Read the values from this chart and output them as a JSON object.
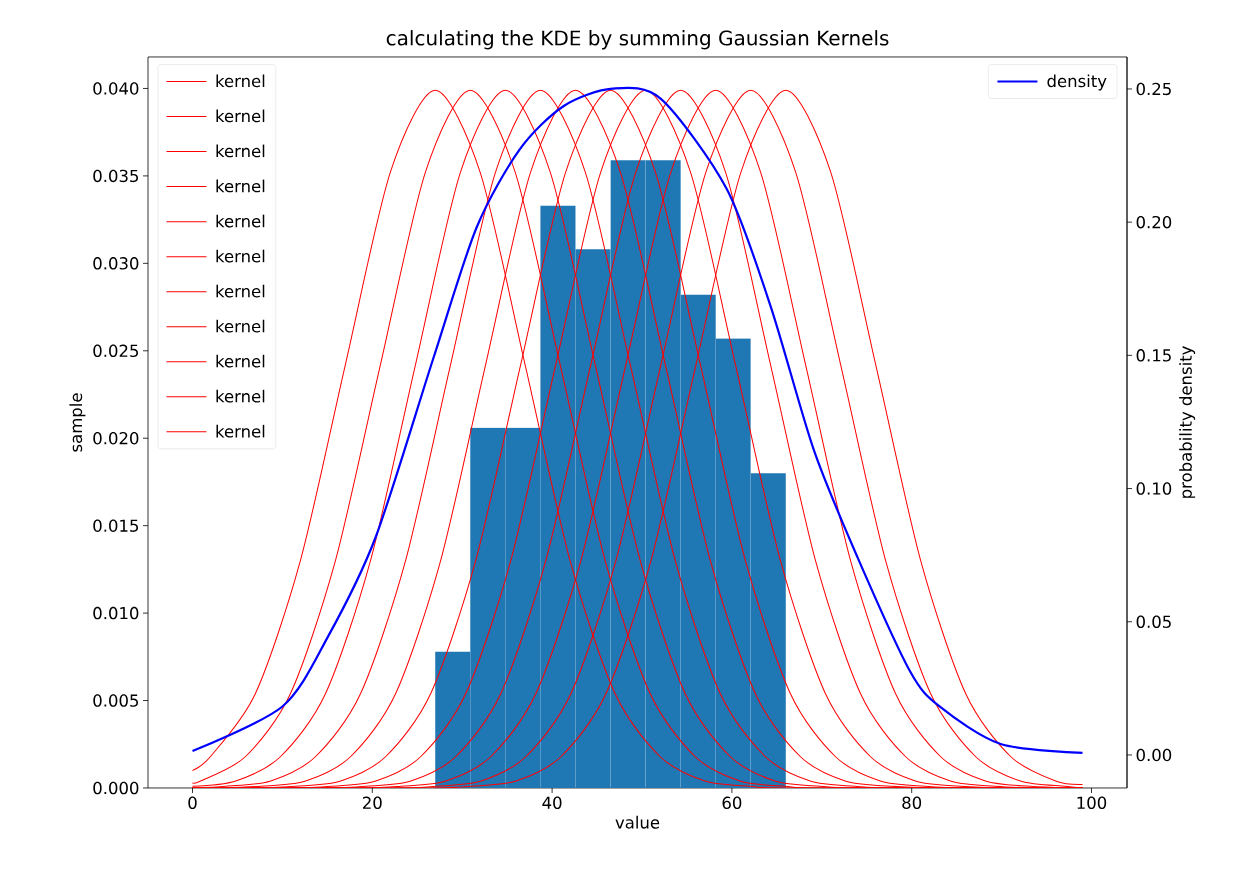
{
  "chart_data": {
    "type": "line",
    "title": "calculating the KDE by summing Gaussian Kernels",
    "xlabel": "value",
    "ylabel": "sample",
    "y2label": "probability density",
    "xlim": [
      -4.95,
      103.95
    ],
    "ylim": [
      0,
      0.0418
    ],
    "y2lim": [
      -0.0124,
      0.262
    ],
    "xticks": [
      0,
      20,
      40,
      60,
      80,
      100
    ],
    "yticks": [
      {
        "value": 0,
        "label": "0.000"
      },
      {
        "value": 0.005,
        "label": "0.005"
      },
      {
        "value": 0.01,
        "label": "0.010"
      },
      {
        "value": 0.015,
        "label": "0.015"
      },
      {
        "value": 0.02,
        "label": "0.020"
      },
      {
        "value": 0.025,
        "label": "0.025"
      },
      {
        "value": 0.03,
        "label": "0.030"
      },
      {
        "value": 0.035,
        "label": "0.035"
      },
      {
        "value": 0.04,
        "label": "0.040"
      }
    ],
    "y2ticks": [
      {
        "value": 0,
        "label": "0.00"
      },
      {
        "value": 0.05,
        "label": "0.05"
      },
      {
        "value": 0.1,
        "label": "0.10"
      },
      {
        "value": 0.15,
        "label": "0.15"
      },
      {
        "value": 0.2,
        "label": "0.20"
      },
      {
        "value": 0.25,
        "label": "0.25"
      }
    ],
    "legend": "top left",
    "grid": false,
    "series": [
      {
        "type": "histogram",
        "color": "#1f77b4",
        "bins": [
          27,
          30.9,
          34.8,
          38.7,
          42.6,
          46.5,
          50.4,
          54.3,
          58.2,
          62.1,
          66
        ],
        "values": [
          0.0078,
          0.0206,
          0.0206,
          0.0333,
          0.0308,
          0.0359,
          0.0359,
          0.0282,
          0.0257,
          0.018
        ]
      },
      {
        "name": "kernel",
        "color": "#ff0000",
        "x": [
          0,
          2,
          7,
          12,
          17,
          22,
          27,
          32,
          37,
          42,
          47,
          52,
          57,
          62,
          67,
          99
        ],
        "values": [
          0.001,
          0.0018,
          0.0054,
          0.013,
          0.0242,
          0.0352,
          0.0399,
          0.0352,
          0.0242,
          0.013,
          0.0054,
          0.0018,
          0.0004,
          0.0001,
          0,
          0
        ]
      },
      {
        "name": "kernel",
        "color": "#ff0000",
        "x": [
          0,
          0.9,
          5.9,
          10.9,
          15.9,
          20.9,
          25.9,
          30.9,
          35.9,
          40.9,
          45.9,
          50.9,
          55.9,
          60.9,
          65.9,
          70.9,
          99
        ],
        "values": [
          0.0003,
          0.0004,
          0.0018,
          0.0054,
          0.013,
          0.0242,
          0.0352,
          0.0399,
          0.0352,
          0.0242,
          0.013,
          0.0054,
          0.0018,
          0.0004,
          0.0001,
          0,
          0
        ]
      },
      {
        "name": "kernel",
        "color": "#ff0000",
        "x": [
          0,
          4.8,
          9.8,
          14.8,
          19.8,
          24.8,
          29.8,
          34.8,
          39.8,
          44.8,
          49.8,
          54.8,
          59.8,
          64.8,
          69.8,
          74.8,
          99
        ],
        "values": [
          0.0001,
          0.0004,
          0.0018,
          0.0054,
          0.013,
          0.0242,
          0.0352,
          0.0399,
          0.0352,
          0.0242,
          0.013,
          0.0054,
          0.0018,
          0.0004,
          0.0001,
          0,
          0
        ]
      },
      {
        "name": "kernel",
        "color": "#ff0000",
        "x": [
          0,
          3.7,
          8.7,
          13.7,
          18.7,
          23.7,
          28.7,
          33.7,
          38.7,
          43.7,
          48.7,
          53.7,
          58.7,
          63.7,
          68.7,
          73.7,
          78.7,
          99
        ],
        "values": [
          0,
          0.0001,
          0.0004,
          0.0018,
          0.0054,
          0.013,
          0.0242,
          0.0352,
          0.0399,
          0.0352,
          0.0242,
          0.013,
          0.0054,
          0.0018,
          0.0004,
          0.0001,
          0,
          0
        ]
      },
      {
        "name": "kernel",
        "color": "#ff0000",
        "x": [
          0,
          2.6,
          7.6,
          12.6,
          17.6,
          22.6,
          27.6,
          32.6,
          37.6,
          42.6,
          47.6,
          52.6,
          57.6,
          62.6,
          67.6,
          72.6,
          77.6,
          82.6,
          99
        ],
        "values": [
          0,
          0,
          0.0001,
          0.0004,
          0.0018,
          0.0054,
          0.013,
          0.0242,
          0.0352,
          0.0399,
          0.0352,
          0.0242,
          0.013,
          0.0054,
          0.0018,
          0.0004,
          0.0001,
          0,
          0
        ]
      },
      {
        "name": "kernel",
        "color": "#ff0000",
        "x": [
          0,
          6.5,
          11.5,
          16.5,
          21.5,
          26.5,
          31.5,
          36.5,
          41.5,
          46.5,
          51.5,
          56.5,
          61.5,
          66.5,
          71.5,
          76.5,
          81.5,
          86.5,
          99
        ],
        "values": [
          0,
          0,
          0.0001,
          0.0004,
          0.0018,
          0.0054,
          0.013,
          0.0242,
          0.0352,
          0.0399,
          0.0352,
          0.0242,
          0.013,
          0.0054,
          0.0018,
          0.0004,
          0.0001,
          0,
          0
        ]
      },
      {
        "name": "kernel",
        "color": "#ff0000",
        "x": [
          0,
          10.4,
          15.4,
          20.4,
          25.4,
          30.4,
          35.4,
          40.4,
          45.4,
          50.4,
          55.4,
          60.4,
          65.4,
          70.4,
          75.4,
          80.4,
          85.4,
          90.4,
          99
        ],
        "values": [
          0,
          0,
          0.0001,
          0.0004,
          0.0018,
          0.0054,
          0.013,
          0.0242,
          0.0352,
          0.0399,
          0.0352,
          0.0242,
          0.013,
          0.0054,
          0.0018,
          0.0004,
          0.0001,
          0,
          0
        ]
      },
      {
        "name": "kernel",
        "color": "#ff0000",
        "x": [
          0,
          14.3,
          19.3,
          24.3,
          29.3,
          34.3,
          39.3,
          44.3,
          49.3,
          54.3,
          59.3,
          64.3,
          69.3,
          74.3,
          79.3,
          84.3,
          89.3,
          94.3,
          99
        ],
        "values": [
          0,
          0,
          0.0001,
          0.0004,
          0.0018,
          0.0054,
          0.013,
          0.0242,
          0.0352,
          0.0399,
          0.0352,
          0.0242,
          0.013,
          0.0054,
          0.0018,
          0.0004,
          0.0001,
          0,
          0
        ]
      },
      {
        "name": "kernel",
        "color": "#ff0000",
        "x": [
          0,
          18.2,
          23.2,
          28.2,
          33.2,
          38.2,
          43.2,
          48.2,
          53.2,
          58.2,
          63.2,
          68.2,
          73.2,
          78.2,
          83.2,
          88.2,
          93.2,
          98.2,
          99
        ],
        "values": [
          0,
          0,
          0.0001,
          0.0004,
          0.0018,
          0.0054,
          0.013,
          0.0242,
          0.0352,
          0.0399,
          0.0352,
          0.0242,
          0.013,
          0.0054,
          0.0018,
          0.0004,
          0.0001,
          0,
          0
        ]
      },
      {
        "name": "kernel",
        "color": "#ff0000",
        "x": [
          0,
          22.1,
          27.1,
          32.1,
          37.1,
          42.1,
          47.1,
          52.1,
          57.1,
          62.1,
          67.1,
          72.1,
          77.1,
          82.1,
          87.1,
          92.1,
          97.1,
          99
        ],
        "values": [
          0,
          0,
          0.0001,
          0.0004,
          0.0018,
          0.0054,
          0.013,
          0.0242,
          0.0352,
          0.0399,
          0.0352,
          0.0242,
          0.013,
          0.0054,
          0.0018,
          0.0004,
          0.0001,
          0
        ]
      },
      {
        "name": "kernel",
        "color": "#ff0000",
        "x": [
          0,
          26,
          31,
          36,
          41,
          46,
          51,
          56,
          61,
          66,
          71,
          76,
          81,
          86,
          91,
          96,
          99
        ],
        "values": [
          0,
          0,
          0.0001,
          0.0004,
          0.0018,
          0.0054,
          0.013,
          0.0242,
          0.0352,
          0.0399,
          0.0352,
          0.0242,
          0.013,
          0.0054,
          0.0018,
          0.0004,
          0.0002
        ]
      },
      {
        "name": "density",
        "color": "#0000ff",
        "axis": "y2",
        "x": [
          0,
          10,
          15.1,
          20.4,
          26.8,
          31.6,
          36.4,
          41.3,
          46.7,
          52.1,
          59.4,
          64.3,
          69.1,
          74,
          79.8,
          83.1,
          89.9,
          99
        ],
        "values": [
          0.0015,
          0.0182,
          0.0446,
          0.082,
          0.149,
          0.198,
          0.2273,
          0.2436,
          0.2501,
          0.2463,
          0.2126,
          0.1685,
          0.1146,
          0.074,
          0.0315,
          0.0182,
          0.0041,
          0.0008
        ]
      }
    ]
  }
}
